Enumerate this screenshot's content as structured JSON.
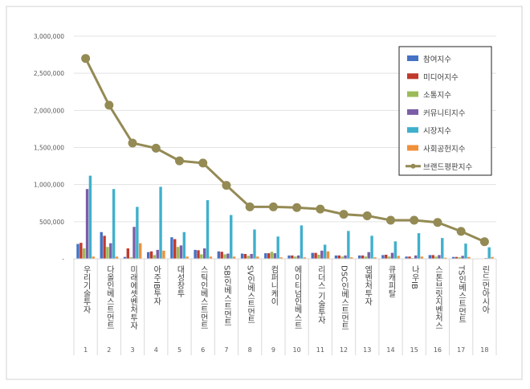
{
  "chart_data": {
    "type": "bar",
    "title": "",
    "xlabel": "",
    "ylabel": "",
    "ylim": [
      0,
      3000000
    ],
    "yticks": [
      "-",
      "500,000",
      "1,000,000",
      "1,500,000",
      "2,000,000",
      "2,500,000",
      "3,000,000"
    ],
    "grid": true,
    "legend_position": "top-right",
    "categories": [
      "우리기술투자",
      "다올인베스트먼트",
      "미래에셋벤처투자",
      "아주IB투자",
      "대성창투",
      "스틱인베스트먼트",
      "SBI인베스트먼트",
      "SV인베스트먼트",
      "컴퍼니케이",
      "에이티넘인베스트",
      "리더스 기술투자",
      "DSC인베스트먼트",
      "엠벤처투자",
      "큐캐피탈",
      "나우IB",
      "스톤브릿지벤처스",
      "TS인베스트먼트",
      "린드먼아시아"
    ],
    "ranks": [
      "1",
      "2",
      "3",
      "4",
      "5",
      "6",
      "7",
      "8",
      "9",
      "10",
      "11",
      "12",
      "13",
      "14",
      "15",
      "16",
      "17",
      "18"
    ],
    "series": [
      {
        "name": "참여지수",
        "type": "bar",
        "color": "#4472c4",
        "values": [
          200000,
          360000,
          25000,
          90000,
          290000,
          120000,
          100000,
          70000,
          75000,
          45000,
          80000,
          45000,
          45000,
          50000,
          30000,
          50000,
          25000,
          5000
        ]
      },
      {
        "name": "미디어지수",
        "type": "bar",
        "color": "#c0392b",
        "values": [
          215000,
          310000,
          140000,
          100000,
          265000,
          115000,
          95000,
          65000,
          75000,
          45000,
          80000,
          45000,
          45000,
          55000,
          30000,
          50000,
          25000,
          5000
        ]
      },
      {
        "name": "소통지수",
        "type": "bar",
        "color": "#9bbb59",
        "values": [
          140000,
          160000,
          20000,
          50000,
          160000,
          60000,
          60000,
          40000,
          95000,
          30000,
          55000,
          30000,
          30000,
          30000,
          10000,
          30000,
          20000,
          5000
        ]
      },
      {
        "name": "커뮤니티지수",
        "type": "bar",
        "color": "#7b5ea7",
        "values": [
          940000,
          210000,
          430000,
          120000,
          180000,
          140000,
          70000,
          65000,
          75000,
          45000,
          110000,
          45000,
          90000,
          80000,
          45000,
          50000,
          40000,
          10000
        ]
      },
      {
        "name": "시장지수",
        "type": "bar",
        "color": "#3fb0cc",
        "values": [
          1120000,
          940000,
          700000,
          970000,
          360000,
          790000,
          590000,
          395000,
          300000,
          450000,
          190000,
          375000,
          310000,
          235000,
          345000,
          280000,
          205000,
          155000
        ]
      },
      {
        "name": "사회공헌지수",
        "type": "bar",
        "color": "#f0903a",
        "values": [
          30000,
          30000,
          210000,
          110000,
          30000,
          30000,
          30000,
          30000,
          20000,
          20000,
          100000,
          20000,
          20000,
          40000,
          30000,
          15000,
          25000,
          25000
        ]
      },
      {
        "name": "브랜드평판지수",
        "type": "line",
        "color": "#948a54",
        "values": [
          2700000,
          2070000,
          1560000,
          1490000,
          1320000,
          1290000,
          990000,
          700000,
          700000,
          690000,
          670000,
          600000,
          580000,
          520000,
          520000,
          490000,
          370000,
          230000
        ]
      }
    ]
  }
}
